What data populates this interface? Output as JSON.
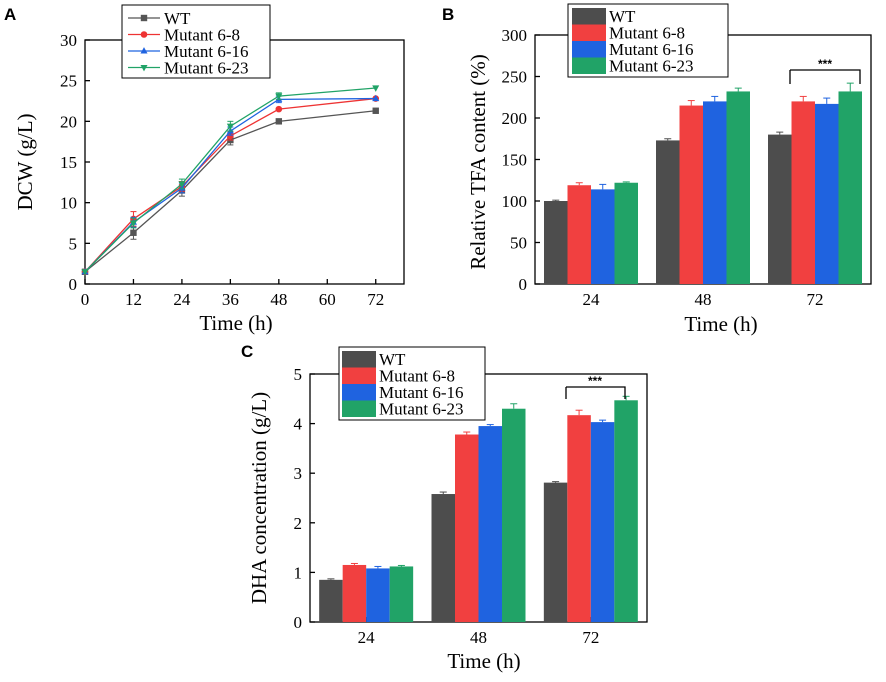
{
  "chart_data": [
    {
      "panel": "A",
      "type": "line",
      "xlabel": "Time (h)",
      "ylabel": "DCW (g/L)",
      "x": [
        0,
        12,
        24,
        36,
        48,
        72
      ],
      "xticks": [
        0,
        12,
        24,
        36,
        48,
        60,
        72
      ],
      "xlim": [
        0,
        79
      ],
      "yticks": [
        0,
        5,
        10,
        15,
        20,
        25,
        30
      ],
      "ylim": [
        0,
        30
      ],
      "series": [
        {
          "name": "WT",
          "color": "#555555",
          "marker": "square",
          "values": [
            1.5,
            6.3,
            11.5,
            17.7,
            20.0,
            21.3
          ],
          "errors": [
            0,
            0.8,
            0.7,
            0.6,
            0,
            0
          ]
        },
        {
          "name": "Mutant 6-8",
          "color": "#ee3333",
          "marker": "circle",
          "values": [
            1.5,
            8.0,
            12.0,
            18.2,
            21.5,
            22.8
          ],
          "errors": [
            0,
            0.9,
            0.6,
            0.5,
            0,
            0
          ]
        },
        {
          "name": "Mutant 6-16",
          "color": "#1f63e0",
          "marker": "triangle-up",
          "values": [
            1.5,
            7.6,
            11.8,
            18.8,
            22.7,
            22.8
          ],
          "errors": [
            0,
            0.6,
            0.6,
            0.5,
            0.4,
            0
          ]
        },
        {
          "name": "Mutant 6-23",
          "color": "#21a367",
          "marker": "triangle-down",
          "values": [
            1.5,
            7.5,
            12.3,
            19.4,
            23.1,
            24.1
          ],
          "errors": [
            0,
            0.6,
            0.6,
            0.6,
            0.4,
            0
          ]
        }
      ]
    },
    {
      "panel": "B",
      "type": "bar",
      "xlabel": "Time (h)",
      "ylabel": "Relative TFA content (%)",
      "categories": [
        "24",
        "48",
        "72"
      ],
      "yticks": [
        0,
        50,
        100,
        150,
        200,
        250,
        300
      ],
      "ylim": [
        0,
        300
      ],
      "series": [
        {
          "name": "WT",
          "color": "#4d4d4d",
          "values": [
            100,
            173,
            180
          ],
          "errors": [
            1,
            2,
            3
          ]
        },
        {
          "name": "Mutant 6-8",
          "color": "#f14040",
          "values": [
            119,
            215,
            220
          ],
          "errors": [
            3,
            6,
            6
          ]
        },
        {
          "name": "Mutant 6-16",
          "color": "#1f63e0",
          "values": [
            114,
            220,
            217
          ],
          "errors": [
            6,
            6,
            7
          ]
        },
        {
          "name": "Mutant 6-23",
          "color": "#21a367",
          "values": [
            122,
            232,
            232
          ],
          "errors": [
            1,
            4,
            10
          ]
        }
      ],
      "annotation": {
        "category": "72",
        "text": "***"
      }
    },
    {
      "panel": "C",
      "type": "bar",
      "xlabel": "Time (h)",
      "ylabel": "DHA concentration (g/L)",
      "categories": [
        "24",
        "48",
        "72"
      ],
      "yticks": [
        0,
        1,
        2,
        3,
        4,
        5
      ],
      "ylim": [
        0,
        5
      ],
      "series": [
        {
          "name": "WT",
          "color": "#4d4d4d",
          "values": [
            0.85,
            2.58,
            2.81
          ],
          "errors": [
            0.02,
            0.04,
            0.02
          ]
        },
        {
          "name": "Mutant 6-8",
          "color": "#f14040",
          "values": [
            1.15,
            3.78,
            4.17
          ],
          "errors": [
            0.03,
            0.05,
            0.1
          ]
        },
        {
          "name": "Mutant 6-16",
          "color": "#1f63e0",
          "values": [
            1.08,
            3.95,
            4.03
          ],
          "errors": [
            0.04,
            0.03,
            0.04
          ]
        },
        {
          "name": "Mutant 6-23",
          "color": "#21a367",
          "values": [
            1.12,
            4.3,
            4.47
          ],
          "errors": [
            0.02,
            0.1,
            0.08
          ]
        }
      ],
      "annotation": {
        "category": "72",
        "text": "***"
      }
    }
  ]
}
